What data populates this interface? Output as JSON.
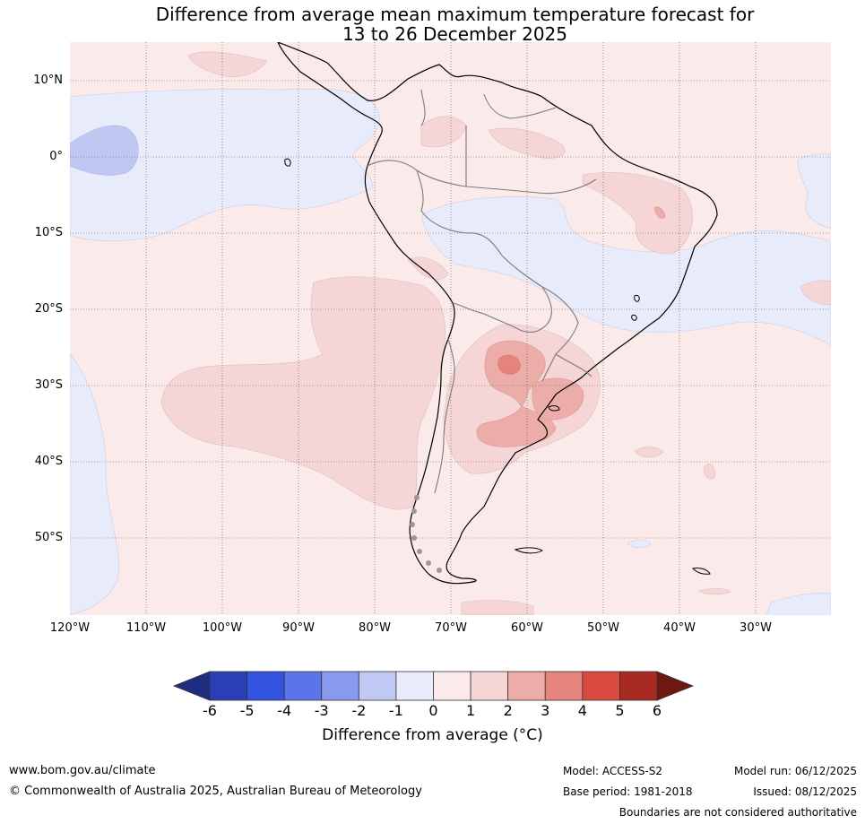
{
  "header": {
    "title_line1": "Difference from average mean maximum temperature forecast for",
    "title_line2": "13 to 26 December 2025"
  },
  "map": {
    "lat_labels": [
      "10°N",
      "0°",
      "10°S",
      "20°S",
      "30°S",
      "40°S",
      "50°S"
    ],
    "lon_labels": [
      "120°W",
      "110°W",
      "100°W",
      "90°W",
      "80°W",
      "70°W",
      "60°W",
      "50°W",
      "40°W",
      "30°W"
    ],
    "shading_legend": {
      "above_0_to_1": "#fbeaea",
      "1_to_2": "#f5d5d5",
      "2_to_3": "#ecaca8",
      "3_to_4": "#e5847d",
      "minus1_to_0": "#e8ebfa",
      "minus2_to_minus1": "#c0c8f2"
    }
  },
  "colorbar": {
    "ticks": [
      "-6",
      "-5",
      "-4",
      "-3",
      "-2",
      "-1",
      "0",
      "1",
      "2",
      "3",
      "4",
      "5",
      "6"
    ],
    "colors": [
      "#1f2d80",
      "#2a3fb3",
      "#3352e0",
      "#5b74e8",
      "#8999ee",
      "#c0c8f4",
      "#e8ebfa",
      "#fbeaea",
      "#f5d5d5",
      "#ecaca8",
      "#e5847d",
      "#d94a3e",
      "#a82b22",
      "#6e1812"
    ],
    "label": "Difference from average (°C)"
  },
  "footer": {
    "website": "www.bom.gov.au/climate",
    "copyright": "© Commonwealth of Australia 2025, Australian Bureau of Meteorology",
    "model": "Model: ACCESS-S2",
    "base_period": "Base period: 1981-2018",
    "model_run": "Model run: 06/12/2025",
    "issued": "Issued: 08/12/2025",
    "disclaimer": "Boundaries are not considered authoritative"
  }
}
